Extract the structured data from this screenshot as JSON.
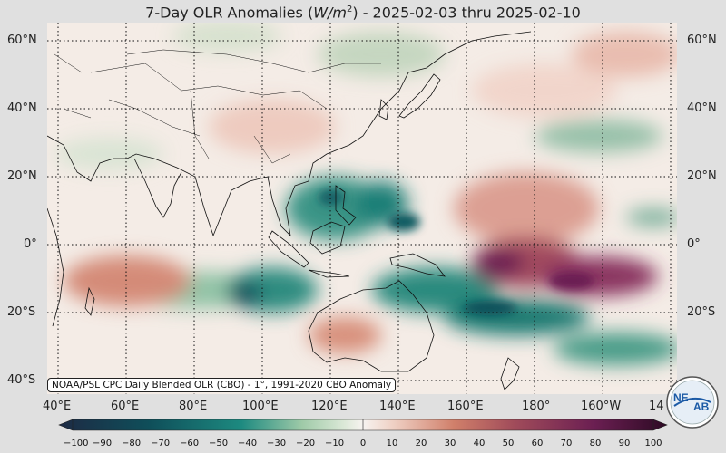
{
  "title": {
    "prefix": "7-Day OLR Anomalies (",
    "unit_base": "W/m",
    "unit_exp": "2",
    "suffix": ") - 2025-02-03 thru 2025-02-10"
  },
  "map": {
    "projection": "equirectangular",
    "lon_range": [
      40,
      220
    ],
    "lat_range": [
      -42,
      66
    ],
    "grid": true,
    "colormap": "diverging teal-white-red-purple"
  },
  "lat_labels": [
    "60°N",
    "40°N",
    "20°N",
    "0°",
    "20°S",
    "40°S"
  ],
  "lon_labels": [
    "40°E",
    "60°E",
    "80°E",
    "100°E",
    "120°E",
    "140°E",
    "160°E",
    "180°",
    "160°W",
    "14"
  ],
  "footnote": "NOAA/PSL CPC Daily Blended OLR (CBO) - 1°, 1991-2020 CBO Anomaly",
  "colorbar": {
    "ticks": [
      "−100",
      "−90",
      "−80",
      "−70",
      "−60",
      "−50",
      "−40",
      "−30",
      "−20",
      "−10",
      "0",
      "10",
      "20",
      "30",
      "40",
      "50",
      "60",
      "70",
      "80",
      "90",
      "100"
    ],
    "colors": {
      "min": "#2b1c3d",
      "deep_teal": "#0f4f5a",
      "teal": "#1d8a80",
      "light_teal": "#9fcaa8",
      "pale_green": "#dce9d8",
      "neutral": "#f7f3f0",
      "pale_red": "#efd0c4",
      "red": "#d07f6a",
      "dark_red": "#a04b5a",
      "purple": "#6b1f52",
      "max": "#2d0a24"
    }
  },
  "logo": {
    "text_ne": "NE",
    "text_ab": "AB",
    "icon": "noaa-psl-logo"
  }
}
